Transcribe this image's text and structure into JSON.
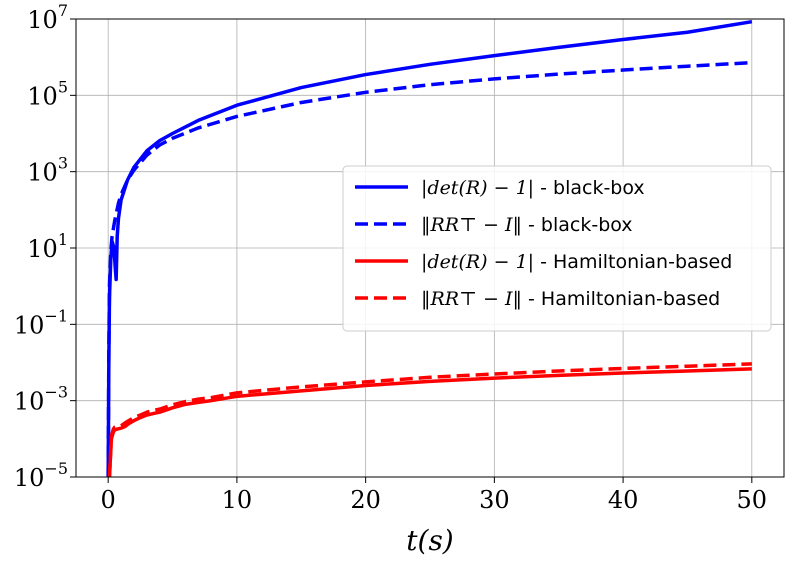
{
  "chart_data": {
    "type": "line",
    "title": "",
    "xlabel": "t(s)",
    "ylabel": "",
    "xlim": [
      -2.5,
      52.5
    ],
    "ylim": [
      1e-05,
      10000000.0
    ],
    "yscale": "log",
    "grid": true,
    "legend_position": "center-right",
    "x_ticks": [
      0,
      10,
      20,
      30,
      40,
      50
    ],
    "x_tick_labels": [
      "0",
      "10",
      "20",
      "30",
      "40",
      "50"
    ],
    "y_ticks": [
      1e-05,
      0.001,
      0.1,
      10.0,
      1000.0,
      100000.0,
      10000000.0
    ],
    "y_tick_labels": [
      {
        "base": "10",
        "exp": "−5"
      },
      {
        "base": "10",
        "exp": "−3"
      },
      {
        "base": "10",
        "exp": "−1"
      },
      {
        "base": "10",
        "exp": "1"
      },
      {
        "base": "10",
        "exp": "3"
      },
      {
        "base": "10",
        "exp": "5"
      },
      {
        "base": "10",
        "exp": "7"
      }
    ],
    "series": [
      {
        "name": "|det(R) − 1| - black-box",
        "color": "#0000ff",
        "dash": "solid",
        "x": [
          0,
          0.05,
          0.1,
          0.2,
          0.3,
          0.45,
          0.55,
          0.62,
          0.7,
          0.8,
          1,
          1.5,
          2,
          3,
          4,
          5,
          7,
          10,
          15,
          20,
          25,
          30,
          35,
          40,
          45,
          50
        ],
        "y": [
          1e-05,
          0.01,
          0.5,
          5,
          15,
          10,
          3,
          1.5,
          20,
          60,
          180,
          600,
          1300,
          3500,
          6500,
          10000,
          22000,
          55000,
          160000,
          350000,
          650000,
          1100000,
          1800000,
          2900000,
          4500000,
          8500000
        ]
      },
      {
        "name": "‖RR⊤ − I‖ - black-box",
        "color": "#0000ff",
        "dash": "dashed",
        "x": [
          0,
          0.05,
          0.1,
          0.2,
          0.3,
          0.5,
          0.8,
          1,
          1.5,
          2,
          3,
          4,
          5,
          7,
          10,
          15,
          20,
          25,
          30,
          35,
          40,
          45,
          50
        ],
        "y": [
          1e-05,
          0.02,
          1,
          8,
          20,
          50,
          150,
          250,
          600,
          1100,
          2700,
          5000,
          7500,
          14000,
          28000,
          65000,
          120000,
          190000,
          270000,
          360000,
          460000,
          580000,
          720000
        ]
      },
      {
        "name": "|det(R) − 1| - Hamiltonian-based",
        "color": "#ff0000",
        "dash": "solid",
        "x": [
          0.1,
          0.25,
          0.4,
          0.5,
          0.7,
          1,
          1.3,
          1.6,
          2,
          2.5,
          3,
          3.5,
          4,
          5,
          6,
          7,
          8,
          10,
          15,
          20,
          25,
          30,
          35,
          40,
          45,
          50
        ],
        "y": [
          1e-05,
          0.0001,
          0.00015,
          0.00017,
          0.00018,
          0.00019,
          0.00021,
          0.00025,
          0.0003,
          0.00036,
          0.00042,
          0.00046,
          0.0005,
          0.00065,
          0.0008,
          0.0009,
          0.001,
          0.0013,
          0.0018,
          0.0025,
          0.0032,
          0.0039,
          0.0046,
          0.0053,
          0.006,
          0.0068
        ]
      },
      {
        "name": "‖RR⊤ − I‖ - Hamiltonian-based",
        "color": "#ff0000",
        "dash": "dashed",
        "x": [
          0.1,
          0.25,
          0.4,
          0.5,
          0.7,
          1,
          1.3,
          1.6,
          2,
          2.5,
          3,
          3.5,
          4,
          5,
          6,
          7,
          8,
          10,
          15,
          20,
          25,
          30,
          35,
          40,
          45,
          50
        ],
        "y": [
          1e-05,
          0.00012,
          0.00018,
          0.0002,
          0.00021,
          0.00022,
          0.00026,
          0.0003,
          0.00036,
          0.00042,
          0.0005,
          0.00055,
          0.0006,
          0.00078,
          0.00095,
          0.0011,
          0.0012,
          0.0016,
          0.0023,
          0.0031,
          0.0041,
          0.005,
          0.006,
          0.007,
          0.008,
          0.0092
        ]
      }
    ],
    "legend": [
      {
        "math": "|det(R) − 1|",
        "text": " - black-box"
      },
      {
        "math": "‖RR⊤ − I‖",
        "text": " - black-box"
      },
      {
        "math": "|det(R) − 1|",
        "text": " - Hamiltonian-based"
      },
      {
        "math": "‖RR⊤ − I‖",
        "text": " - Hamiltonian-based"
      }
    ]
  }
}
